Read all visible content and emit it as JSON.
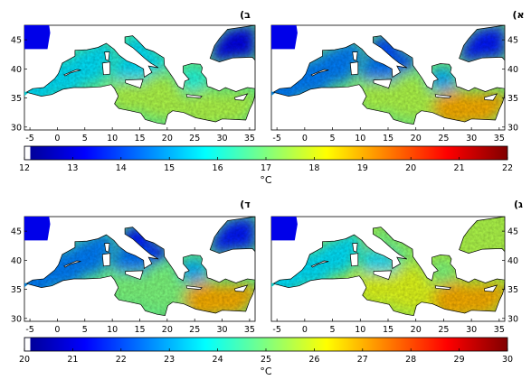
{
  "chart_data": [
    {
      "type": "heatmap",
      "panel_label": "(ב",
      "xlim": [
        -6,
        36
      ],
      "ylim": [
        29.5,
        47.5
      ],
      "x_ticks": [
        "-5",
        "0",
        "5",
        "10",
        "15",
        "20",
        "25",
        "30",
        "35"
      ],
      "y_ticks": [
        "45",
        "40",
        "35",
        "30"
      ],
      "colorbar": "top",
      "temperature_pattern_C": {
        "west": 15.5,
        "adriatic": 15.5,
        "central": 17.5,
        "levant": 17.5,
        "aegean": 16
      }
    },
    {
      "type": "heatmap",
      "panel_label": "(א",
      "xlim": [
        -6,
        36
      ],
      "ylim": [
        29.5,
        47.5
      ],
      "x_ticks": [
        "-5",
        "0",
        "5",
        "10",
        "15",
        "20",
        "25",
        "30",
        "35"
      ],
      "y_ticks": [
        "45",
        "40",
        "35",
        "30"
      ],
      "colorbar": "top",
      "temperature_pattern_C": {
        "west": 14.5,
        "adriatic": 14,
        "central": 17.5,
        "levant": 19,
        "aegean": 15
      }
    },
    {
      "type": "heatmap",
      "panel_label": "(ד",
      "xlim": [
        -6,
        36
      ],
      "ylim": [
        29.5,
        47.5
      ],
      "x_ticks": [
        "-5",
        "0",
        "5",
        "10",
        "15",
        "20",
        "25",
        "30",
        "35"
      ],
      "y_ticks": [
        "45",
        "40",
        "35",
        "30"
      ],
      "colorbar": "bottom",
      "temperature_pattern_C": {
        "west": 22.5,
        "adriatic": 21.5,
        "central": 25,
        "levant": 27,
        "aegean": 23
      }
    },
    {
      "type": "heatmap",
      "panel_label": "(ג",
      "xlim": [
        -6,
        36
      ],
      "ylim": [
        29.5,
        47.5
      ],
      "x_ticks": [
        "-5",
        "0",
        "5",
        "10",
        "15",
        "20",
        "25",
        "30",
        "35"
      ],
      "y_ticks": [
        "45",
        "40",
        "35",
        "30"
      ],
      "colorbar": "bottom",
      "temperature_pattern_C": {
        "west": 23.5,
        "adriatic": 25,
        "central": 26,
        "levant": 27,
        "aegean": 25
      }
    }
  ],
  "colorbars": {
    "top": {
      "min": 12,
      "max": 22,
      "ticks": [
        "12",
        "13",
        "14",
        "15",
        "16",
        "17",
        "18",
        "19",
        "20",
        "21",
        "22"
      ],
      "unit": "°C"
    },
    "bottom": {
      "min": 20,
      "max": 30,
      "ticks": [
        "20",
        "21",
        "22",
        "23",
        "24",
        "25",
        "26",
        "27",
        "28",
        "29",
        "30"
      ],
      "unit": "°C"
    }
  },
  "colors": {
    "colormap": "jet",
    "land_outline": "#000000",
    "background": "#ffffff"
  }
}
